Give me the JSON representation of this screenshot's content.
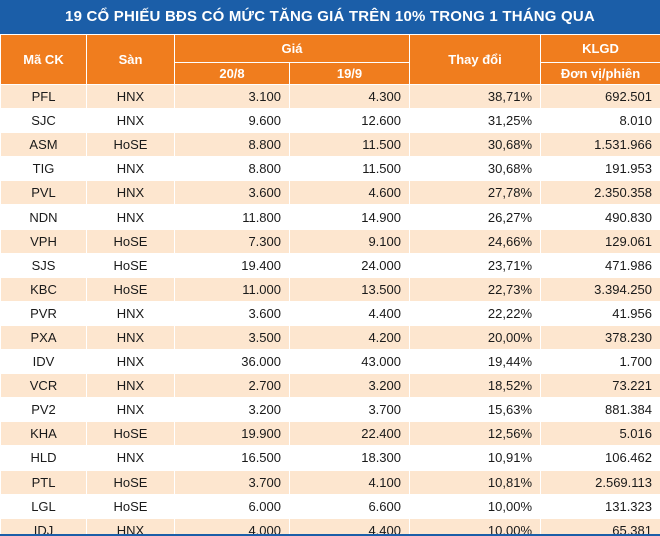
{
  "title": "19 CỔ PHIẾU BĐS CÓ MỨC TĂNG GIÁ TRÊN 10% TRONG 1 THÁNG QUA",
  "headers": {
    "ma_ck": "Mã CK",
    "san": "Sàn",
    "gia": "Giá",
    "date1": "20/8",
    "date2": "19/9",
    "thay_doi": "Thay đổi",
    "klgd": "KLGD",
    "klgd_unit": "Đơn vị/phiên"
  },
  "rows": [
    {
      "code": "PFL",
      "exchange": "HNX",
      "p1": "3.100",
      "p2": "4.300",
      "change": "38,71%",
      "volume": "692.501"
    },
    {
      "code": "SJC",
      "exchange": "HNX",
      "p1": "9.600",
      "p2": "12.600",
      "change": "31,25%",
      "volume": "8.010"
    },
    {
      "code": "ASM",
      "exchange": "HoSE",
      "p1": "8.800",
      "p2": "11.500",
      "change": "30,68%",
      "volume": "1.531.966"
    },
    {
      "code": "TIG",
      "exchange": "HNX",
      "p1": "8.800",
      "p2": "11.500",
      "change": "30,68%",
      "volume": "191.953"
    },
    {
      "code": "PVL",
      "exchange": "HNX",
      "p1": "3.600",
      "p2": "4.600",
      "change": "27,78%",
      "volume": "2.350.358"
    },
    {
      "code": "NDN",
      "exchange": "HNX",
      "p1": "11.800",
      "p2": "14.900",
      "change": "26,27%",
      "volume": "490.830"
    },
    {
      "code": "VPH",
      "exchange": "HoSE",
      "p1": "7.300",
      "p2": "9.100",
      "change": "24,66%",
      "volume": "129.061"
    },
    {
      "code": "SJS",
      "exchange": "HoSE",
      "p1": "19.400",
      "p2": "24.000",
      "change": "23,71%",
      "volume": "471.986"
    },
    {
      "code": "KBC",
      "exchange": "HoSE",
      "p1": "11.000",
      "p2": "13.500",
      "change": "22,73%",
      "volume": "3.394.250"
    },
    {
      "code": "PVR",
      "exchange": "HNX",
      "p1": "3.600",
      "p2": "4.400",
      "change": "22,22%",
      "volume": "41.956"
    },
    {
      "code": "PXA",
      "exchange": "HNX",
      "p1": "3.500",
      "p2": "4.200",
      "change": "20,00%",
      "volume": "378.230"
    },
    {
      "code": "IDV",
      "exchange": "HNX",
      "p1": "36.000",
      "p2": "43.000",
      "change": "19,44%",
      "volume": "1.700"
    },
    {
      "code": "VCR",
      "exchange": "HNX",
      "p1": "2.700",
      "p2": "3.200",
      "change": "18,52%",
      "volume": "73.221"
    },
    {
      "code": "PV2",
      "exchange": "HNX",
      "p1": "3.200",
      "p2": "3.700",
      "change": "15,63%",
      "volume": "881.384"
    },
    {
      "code": "KHA",
      "exchange": "HoSE",
      "p1": "19.900",
      "p2": "22.400",
      "change": "12,56%",
      "volume": "5.016"
    },
    {
      "code": "HLD",
      "exchange": "HNX",
      "p1": "16.500",
      "p2": "18.300",
      "change": "10,91%",
      "volume": "106.462"
    },
    {
      "code": "PTL",
      "exchange": "HoSE",
      "p1": "3.700",
      "p2": "4.100",
      "change": "10,81%",
      "volume": "2.569.113"
    },
    {
      "code": "LGL",
      "exchange": "HoSE",
      "p1": "6.000",
      "p2": "6.600",
      "change": "10,00%",
      "volume": "131.323"
    },
    {
      "code": "IDJ",
      "exchange": "HNX",
      "p1": "4.000",
      "p2": "4.400",
      "change": "10,00%",
      "volume": "65.381"
    }
  ],
  "colors": {
    "title_bg": "#1b5ea8",
    "header_bg": "#f07d1e",
    "row_alt": "#fde6cf"
  }
}
